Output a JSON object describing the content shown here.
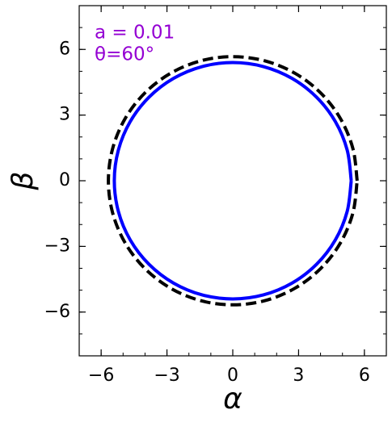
{
  "chart_data": {
    "type": "line",
    "annotations": [
      "a = 0.01",
      "θ=60°"
    ],
    "annotation_color": "#9400d3",
    "xlabel": "α",
    "ylabel": "β",
    "xlim": [
      -7,
      7
    ],
    "ylim": [
      -8,
      8
    ],
    "xticks": [
      {
        "value": -6,
        "label": "−6"
      },
      {
        "value": -3,
        "label": "−3"
      },
      0,
      3,
      6
    ],
    "yticks": [
      {
        "value": -6,
        "label": "−6"
      },
      {
        "value": -3,
        "label": "−3"
      },
      0,
      3,
      6
    ],
    "series": [
      {
        "color": "#0000ff",
        "dashed": false,
        "x": [
          5.4,
          5.216,
          4.677,
          3.818,
          2.7,
          1.398,
          0,
          -1.398,
          -2.7,
          -3.818,
          -4.677,
          -5.216,
          -5.4,
          -5.216,
          -4.677,
          -3.818,
          -2.7,
          -1.398,
          0,
          1.398,
          2.7,
          3.818,
          4.677,
          5.216,
          5.4
        ],
        "values": [
          0,
          1.398,
          2.7,
          3.818,
          4.677,
          5.216,
          5.4,
          5.216,
          4.677,
          3.818,
          2.7,
          1.398,
          0,
          -1.398,
          -2.7,
          -3.818,
          -4.677,
          -5.216,
          -5.4,
          -5.216,
          -4.677,
          -3.818,
          -2.7,
          -1.398,
          0
        ]
      },
      {
        "color": "#000000",
        "dashed": true,
        "x": [
          5.67,
          5.477,
          4.91,
          4.009,
          2.835,
          1.467,
          0,
          -1.467,
          -2.835,
          -4.009,
          -4.91,
          -5.477,
          -5.67,
          -5.477,
          -4.91,
          -4.009,
          -2.835,
          -1.467,
          0,
          1.467,
          2.835,
          4.009,
          4.91,
          5.477,
          5.67
        ],
        "values": [
          0,
          1.467,
          2.835,
          4.009,
          4.91,
          5.477,
          5.67,
          5.477,
          4.91,
          4.009,
          2.835,
          1.467,
          0,
          -1.467,
          -2.835,
          -4.009,
          -4.91,
          -5.477,
          -5.67,
          -5.477,
          -4.91,
          -4.009,
          -2.835,
          -1.467,
          0
        ]
      }
    ]
  }
}
